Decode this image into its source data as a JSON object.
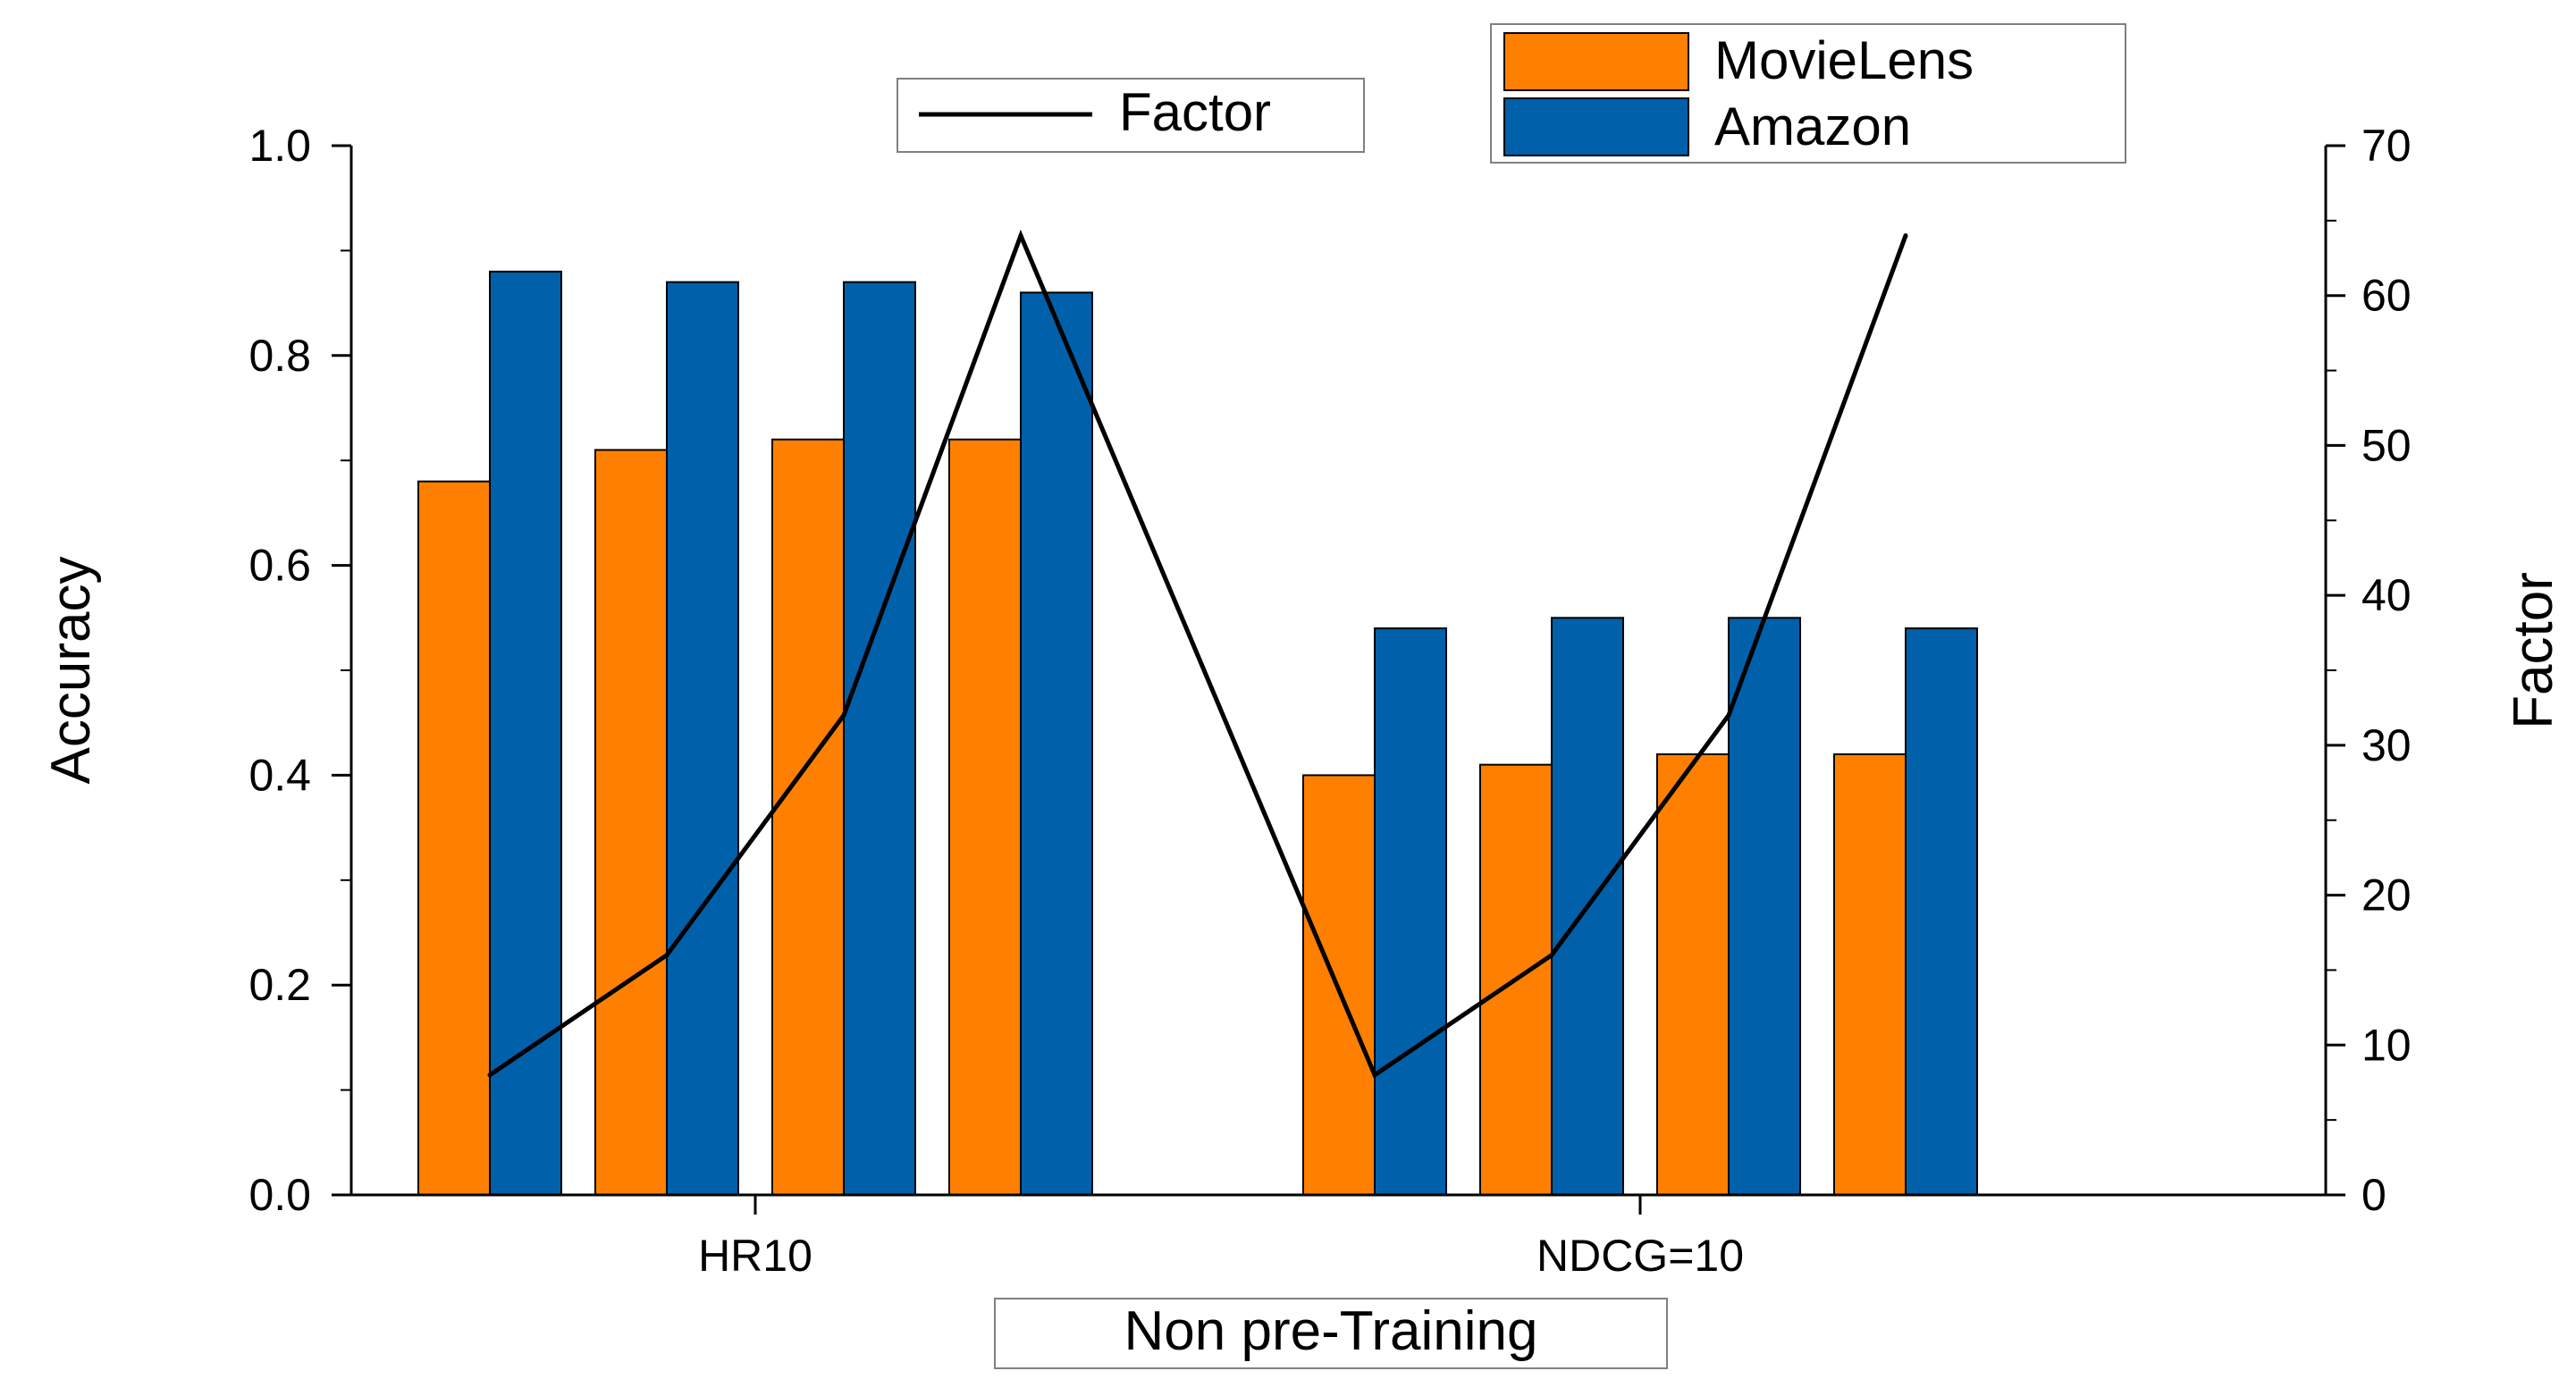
{
  "chart_data": {
    "type": "bar",
    "title": "",
    "groups": [
      "HR10",
      "NDCG=10"
    ],
    "series": [
      {
        "name": "MovieLens",
        "color": "#ff8000",
        "values": [
          0.68,
          0.71,
          0.72,
          0.72,
          0.4,
          0.41,
          0.42,
          0.42
        ]
      },
      {
        "name": "Amazon",
        "color": "#0060aa",
        "values": [
          0.88,
          0.87,
          0.87,
          0.86,
          0.54,
          0.55,
          0.55,
          0.54
        ]
      }
    ],
    "line": {
      "name": "Factor",
      "color": "#000000",
      "axis": "right",
      "values": [
        8,
        16,
        32,
        64,
        8,
        16,
        32,
        64
      ]
    },
    "ylabel": "Accuracy",
    "y2label": "Factor",
    "xlabel": "Non pre-Training",
    "ylim": [
      0,
      1.0
    ],
    "yticks": [
      "0.0",
      "0.2",
      "0.4",
      "0.6",
      "0.8",
      "1.0"
    ],
    "y2lim": [
      0,
      70
    ],
    "y2ticks": [
      "0",
      "10",
      "20",
      "30",
      "40",
      "50",
      "60",
      "70"
    ],
    "legend_bars_position": "top-right",
    "legend_line_position": "top-center"
  }
}
